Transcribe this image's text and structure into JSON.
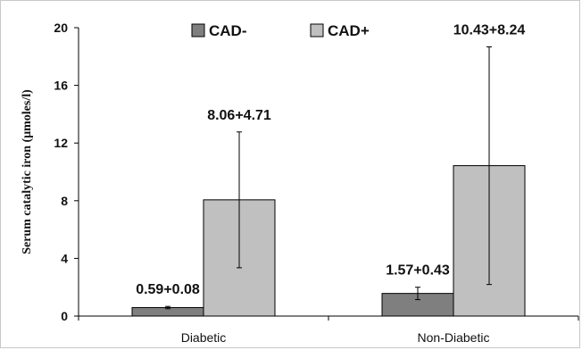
{
  "chart_data": {
    "type": "bar",
    "ylabel": "Serum catalytic iron (μmoles/l)",
    "xlabel": "",
    "ylim": [
      0,
      20
    ],
    "yticks": [
      0,
      4,
      8,
      12,
      16,
      20
    ],
    "categories": [
      "Diabetic",
      "Non-Diabetic"
    ],
    "legend_position": "top-center",
    "series": [
      {
        "name": "CAD-",
        "color": "#7f7f7f",
        "values": [
          0.59,
          1.57
        ],
        "errors": [
          0.08,
          0.43
        ],
        "labels": [
          "0.59+0.08",
          "1.57+0.43"
        ]
      },
      {
        "name": "CAD+",
        "color": "#c0c0c0",
        "values": [
          8.06,
          10.43
        ],
        "errors": [
          4.71,
          8.24
        ],
        "labels": [
          "8.06+4.71",
          "10.43+8.24"
        ]
      }
    ],
    "grid": false
  }
}
